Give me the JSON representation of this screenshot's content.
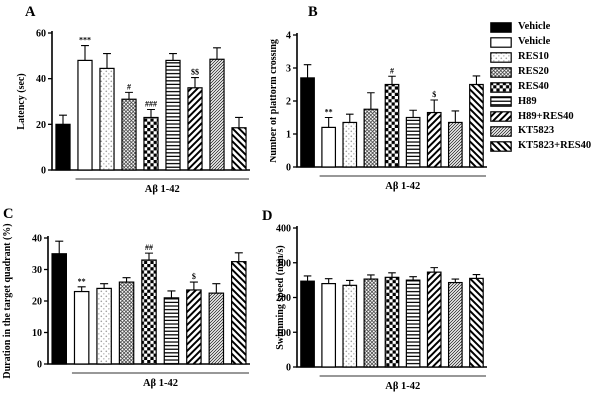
{
  "figure": {
    "group_axis_label": "Aβ 1-42",
    "groups": [
      "Vehicle",
      "Vehicle",
      "RES10",
      "RES20",
      "RES40",
      "H89",
      "H89+RES40",
      "KT5823",
      "KT5823+RES40"
    ],
    "colors": {
      "bar_stroke": "#000000",
      "group_line": "#777777",
      "background": "#ffffff"
    }
  },
  "legend": {
    "position": "right-top",
    "items": [
      {
        "label": "Vehicle",
        "pattern": "solid-black"
      },
      {
        "label": "Vehicle",
        "pattern": "open-white"
      },
      {
        "label": "RES10",
        "pattern": "dots-light"
      },
      {
        "label": "RES20",
        "pattern": "crosshatch-gray"
      },
      {
        "label": "RES40",
        "pattern": "checker-bold"
      },
      {
        "label": "H89",
        "pattern": "hlines"
      },
      {
        "label": "H89+RES40",
        "pattern": "diag-up"
      },
      {
        "label": "KT5823",
        "pattern": "diag-fine"
      },
      {
        "label": "KT5823+RES40",
        "pattern": "diag-down"
      }
    ]
  },
  "chart_data": [
    {
      "type": "bar",
      "panel": "A",
      "title": "",
      "ylabel": "Latency (sec)",
      "xlabel": "Aβ 1-42",
      "ylim": [
        0,
        60
      ],
      "yticks": [
        0,
        20,
        40,
        60
      ],
      "grid": false,
      "categories": [
        "Vehicle",
        "Vehicle",
        "RES10",
        "RES20",
        "RES40",
        "H89",
        "H89+RES40",
        "KT5823",
        "KT5823+RES40"
      ],
      "values": [
        20,
        48,
        44.5,
        31,
        23,
        48,
        36,
        48.5,
        18.5
      ],
      "errors": [
        4,
        6.5,
        6.5,
        3,
        3.5,
        3,
        4.5,
        5,
        4.5
      ],
      "annotations": [
        "",
        "***",
        "",
        "#",
        "###",
        "",
        "$$",
        "",
        ""
      ]
    },
    {
      "type": "bar",
      "panel": "B",
      "title": "",
      "ylabel": "Number of platform crossing",
      "xlabel": "Aβ 1-42",
      "ylim": [
        0,
        4
      ],
      "yticks": [
        0,
        1,
        2,
        3,
        4
      ],
      "grid": false,
      "categories": [
        "Vehicle",
        "Vehicle",
        "RES10",
        "RES20",
        "RES40",
        "H89",
        "H89+RES40",
        "KT5823",
        "KT5823+RES40"
      ],
      "values": [
        2.7,
        1.2,
        1.35,
        1.75,
        2.5,
        1.5,
        1.65,
        1.35,
        2.5
      ],
      "errors": [
        0.4,
        0.3,
        0.25,
        0.5,
        0.25,
        0.22,
        0.38,
        0.35,
        0.26
      ],
      "annotations": [
        "",
        "**",
        "",
        "",
        "#",
        "",
        "$",
        "",
        ""
      ]
    },
    {
      "type": "bar",
      "panel": "C",
      "title": "",
      "ylabel": "Duration in the target quadrant (%)",
      "xlabel": "Aβ 1-42",
      "ylim": [
        0,
        40
      ],
      "yticks": [
        0,
        10,
        20,
        30,
        40
      ],
      "grid": false,
      "categories": [
        "Vehicle",
        "Vehicle",
        "RES10",
        "RES20",
        "RES40",
        "H89",
        "H89+RES40",
        "KT5823",
        "KT5823+RES40"
      ],
      "values": [
        35,
        23,
        24,
        26,
        33,
        21,
        23.5,
        22.5,
        32.5
      ],
      "errors": [
        4,
        1.5,
        1.5,
        1.4,
        2.2,
        2.2,
        2.5,
        3,
        2.8
      ],
      "annotations": [
        "",
        "**",
        "",
        "",
        "##",
        "",
        "$",
        "",
        ""
      ]
    },
    {
      "type": "bar",
      "panel": "D",
      "title": "",
      "ylabel": "Swimming speed (mm/s)",
      "xlabel": "Aβ 1-42",
      "ylim": [
        0,
        400
      ],
      "yticks": [
        0,
        100,
        200,
        300,
        400
      ],
      "grid": false,
      "categories": [
        "Vehicle",
        "Vehicle",
        "RES10",
        "RES20",
        "RES40",
        "H89",
        "H89+RES40",
        "KT5823",
        "KT5823+RES40"
      ],
      "values": [
        247,
        240,
        235,
        253,
        258,
        250,
        273,
        243,
        255
      ],
      "errors": [
        15,
        14,
        14,
        12,
        13,
        10,
        13,
        10,
        11
      ],
      "annotations": [
        "",
        "",
        "",
        "",
        "",
        "",
        "",
        "",
        ""
      ]
    }
  ]
}
